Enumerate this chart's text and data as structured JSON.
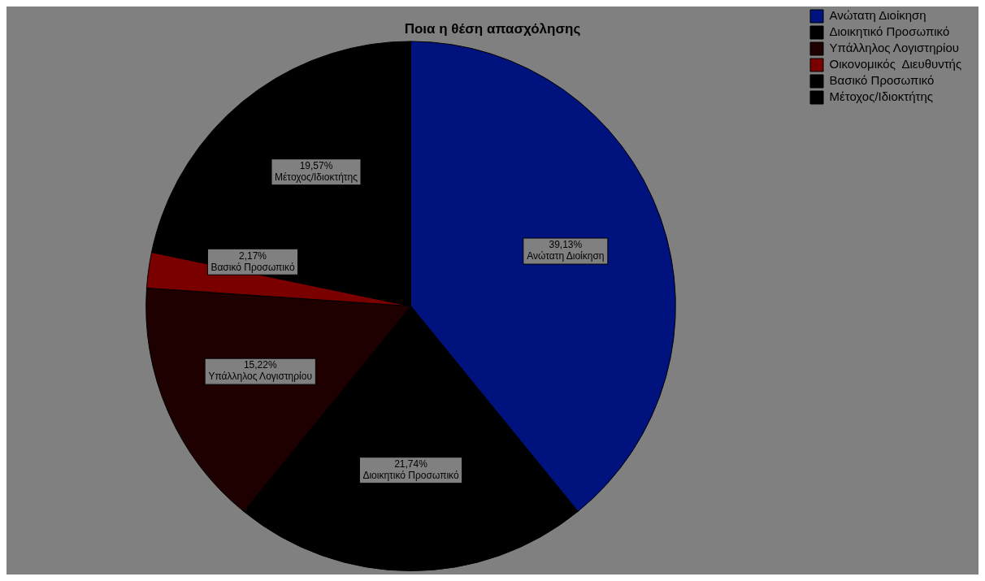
{
  "chart_data": {
    "type": "pie",
    "title": "Ποια η θέση απασχόλησης",
    "categories": [
      "Ανώτατη Διοίκηση",
      "Διοικητικό Προσωπικό",
      "Υπάλληλος Λογιστηρίου",
      "Οικονομικός  Διευθυντής",
      "Βασικό Προσωπικό",
      "Μέτοχος/Ιδιοκτήτης"
    ],
    "values": [
      39.13,
      21.74,
      15.22,
      2.17,
      2.17,
      19.57
    ],
    "colors": [
      "#00127e",
      "#000000",
      "#1e0000",
      "#7a0000",
      "#000000",
      "#000000"
    ],
    "value_labels": [
      "39,13%",
      "21,74%",
      "15,22%",
      null,
      "2,17%",
      "19,57%"
    ],
    "legend": "top right"
  }
}
